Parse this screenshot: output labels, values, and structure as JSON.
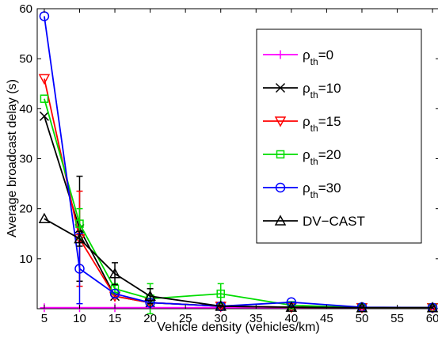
{
  "chart_data": {
    "type": "line",
    "xlabel": "Vehicle density (vehicles/km)",
    "ylabel": "Average broadcast delay (s)",
    "xlim": [
      4,
      61
    ],
    "ylim": [
      0,
      60
    ],
    "xticks": [
      5,
      10,
      15,
      20,
      25,
      30,
      35,
      40,
      45,
      50,
      55,
      60
    ],
    "yticks": [
      10,
      20,
      30,
      40,
      50,
      60
    ],
    "grid": false,
    "legend_position": "top-right",
    "series": [
      {
        "name_main": "ρ",
        "name_sub": "th",
        "name_suffix": "=0",
        "color": "#ff00ff",
        "marker": "plus",
        "x": [
          5,
          10,
          15,
          20,
          30,
          40,
          50,
          60
        ],
        "y": [
          0.2,
          0.2,
          0.2,
          0.2,
          0.2,
          0.2,
          0.2,
          0.2
        ],
        "err": [
          0,
          0,
          0,
          0,
          0,
          0,
          0,
          0
        ]
      },
      {
        "name_main": "ρ",
        "name_sub": "th",
        "name_suffix": "=10",
        "color": "#000000",
        "marker": "x",
        "x": [
          5,
          10,
          15,
          20,
          30,
          40,
          50,
          60
        ],
        "y": [
          38.5,
          16,
          2.5,
          1.2,
          0.5,
          0.3,
          0.2,
          0.2
        ],
        "err": [
          0,
          10.5,
          0,
          0,
          0,
          0,
          0,
          0
        ]
      },
      {
        "name_main": "ρ",
        "name_sub": "th",
        "name_suffix": "=15",
        "color": "#ff0000",
        "marker": "triangle-down",
        "x": [
          5,
          10,
          15,
          20,
          30,
          40,
          50,
          60
        ],
        "y": [
          46,
          14,
          2.5,
          1.2,
          0.5,
          0.3,
          0.2,
          0.2
        ],
        "err": [
          0,
          9.5,
          0,
          0,
          0,
          0,
          0,
          0
        ]
      },
      {
        "name_main": "ρ",
        "name_sub": "th",
        "name_suffix": "=20",
        "color": "#00dd00",
        "marker": "square",
        "x": [
          5,
          10,
          15,
          20,
          30,
          40,
          50,
          60
        ],
        "y": [
          42,
          17,
          4,
          2,
          3,
          0.7,
          0.2,
          0.2
        ],
        "err": [
          0,
          3,
          1,
          3,
          2,
          0,
          0,
          0
        ]
      },
      {
        "name_main": "ρ",
        "name_sub": "th",
        "name_suffix": "=30",
        "color": "#0000ff",
        "marker": "circle",
        "x": [
          5,
          10,
          15,
          20,
          30,
          40,
          50,
          60
        ],
        "y": [
          58.5,
          8,
          3,
          1.2,
          0.5,
          1.3,
          0.3,
          0.2
        ],
        "err": [
          0,
          7,
          0,
          0,
          0,
          0,
          0,
          0
        ]
      },
      {
        "name_main": "DV−CAST",
        "name_sub": "",
        "name_suffix": "",
        "color": "#000000",
        "marker": "triangle-up",
        "x": [
          5,
          10,
          15,
          20,
          30,
          40,
          50,
          60
        ],
        "y": [
          18,
          14,
          7,
          2.5,
          0.5,
          0.3,
          0.2,
          0.2
        ],
        "err": [
          0,
          1.5,
          2.2,
          1.5,
          0,
          0,
          0,
          0
        ]
      }
    ]
  }
}
